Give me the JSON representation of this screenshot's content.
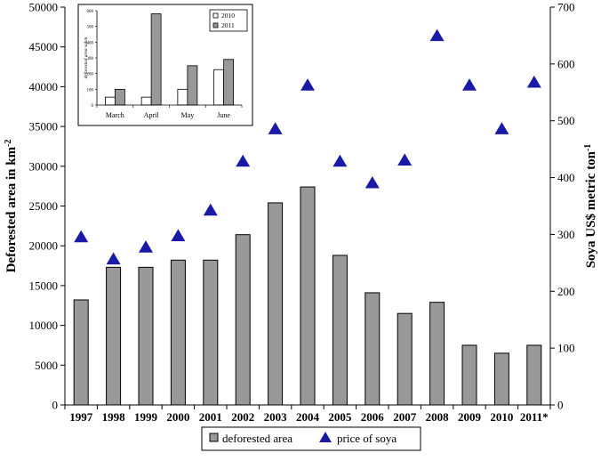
{
  "chart_data": [
    {
      "type": "bar+scatter",
      "categories": [
        "1997",
        "1998",
        "1999",
        "2000",
        "2001",
        "2002",
        "2003",
        "2004",
        "2005",
        "2006",
        "2007",
        "2008",
        "2009",
        "2010",
        "2011*"
      ],
      "series": [
        {
          "name": "deforested area",
          "type": "bar",
          "axis": "left",
          "color": "#999999",
          "values": [
            13200,
            17300,
            17300,
            18200,
            18200,
            21400,
            25400,
            27400,
            18800,
            14100,
            11500,
            12900,
            7500,
            6500,
            7500
          ]
        },
        {
          "name": "price of soya",
          "type": "scatter",
          "marker": "triangle",
          "axis": "right",
          "color": "#1a1aa6",
          "values": [
            295,
            256,
            277,
            297,
            342,
            428,
            485,
            562,
            428,
            390,
            430,
            649,
            562,
            485,
            567
          ]
        }
      ],
      "ylabel_left": "Deforested area in km",
      "ylabel_left_sup": "-2",
      "ylabel_right": "Soya US$ metric ton",
      "ylabel_right_sup": "-1",
      "ylim_left": [
        0,
        50000
      ],
      "yticks_left": [
        "0",
        "5000",
        "10000",
        "15000",
        "20000",
        "25000",
        "30000",
        "35000",
        "40000",
        "45000",
        "50000"
      ],
      "ylim_right": [
        0,
        700
      ],
      "yticks_right": [
        "0",
        "100",
        "200",
        "300",
        "400",
        "500",
        "600",
        "700"
      ],
      "legend_position": "bottom"
    },
    {
      "type": "bar",
      "inset": true,
      "categories": [
        "March",
        "April",
        "May",
        "June"
      ],
      "series": [
        {
          "name": "2010",
          "color": "#ffffff",
          "values": [
            50,
            50,
            100,
            225
          ]
        },
        {
          "name": "2011",
          "color": "#999999",
          "values": [
            100,
            580,
            250,
            290
          ]
        }
      ],
      "ylabel": "deforested area sqkm",
      "ylim": [
        0,
        600
      ],
      "yticks": [
        "0",
        "100",
        "200",
        "300",
        "400",
        "500",
        "600"
      ],
      "legend_position": "top-right"
    }
  ]
}
